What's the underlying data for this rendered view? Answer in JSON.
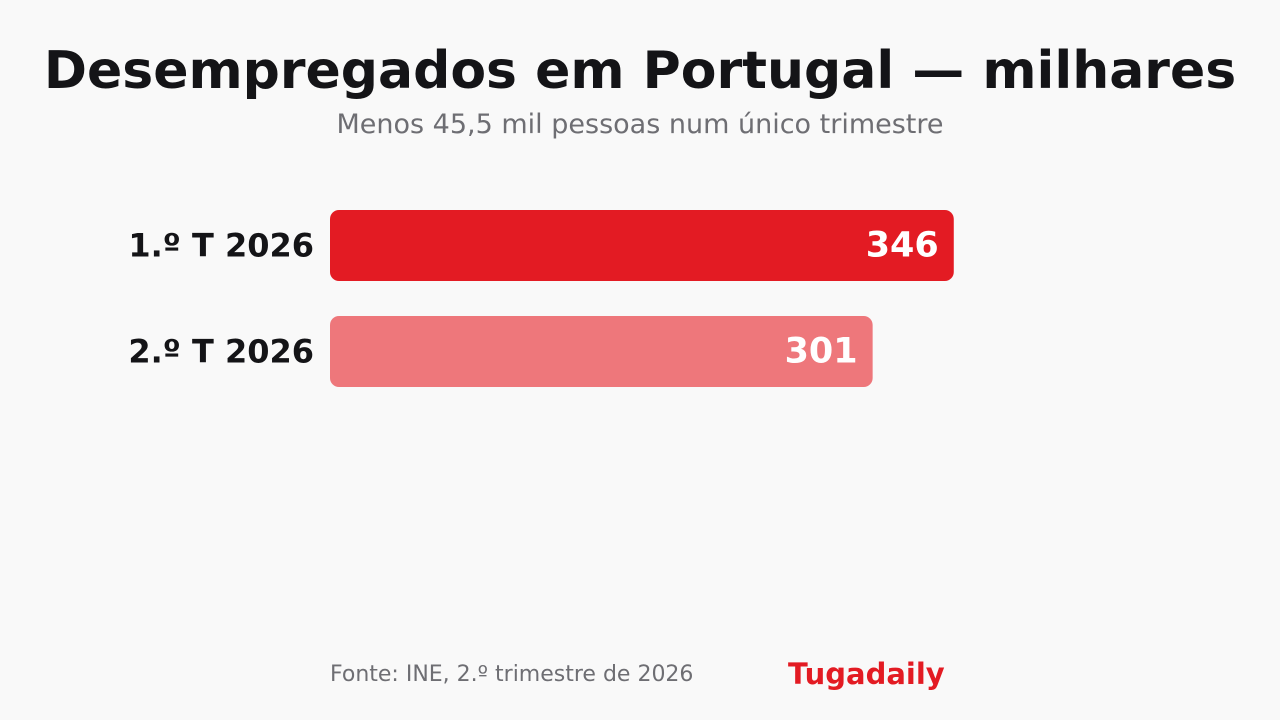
{
  "chart_data": {
    "type": "bar",
    "orientation": "horizontal",
    "title": "Desempregados em Portugal — milhares",
    "subtitle": "Menos 45,5 mil pessoas num único trimestre",
    "categories": [
      "1.º T 2026",
      "2.º T 2026"
    ],
    "values": [
      346,
      301
    ],
    "value_labels": [
      "346",
      "301"
    ],
    "bar_colors": [
      "#e31b23",
      "#ee777b"
    ],
    "xlim": [
      0,
      355
    ],
    "grid": false,
    "legend": "none"
  },
  "footer": {
    "source": "Fonte: INE, 2.º trimestre de 2026",
    "brand": "Tugadaily"
  },
  "colors": {
    "background": "#f9f9f9",
    "title": "#141417",
    "muted": "#6e6e73",
    "accent": "#e31b23",
    "value_text": "#ffffff"
  }
}
